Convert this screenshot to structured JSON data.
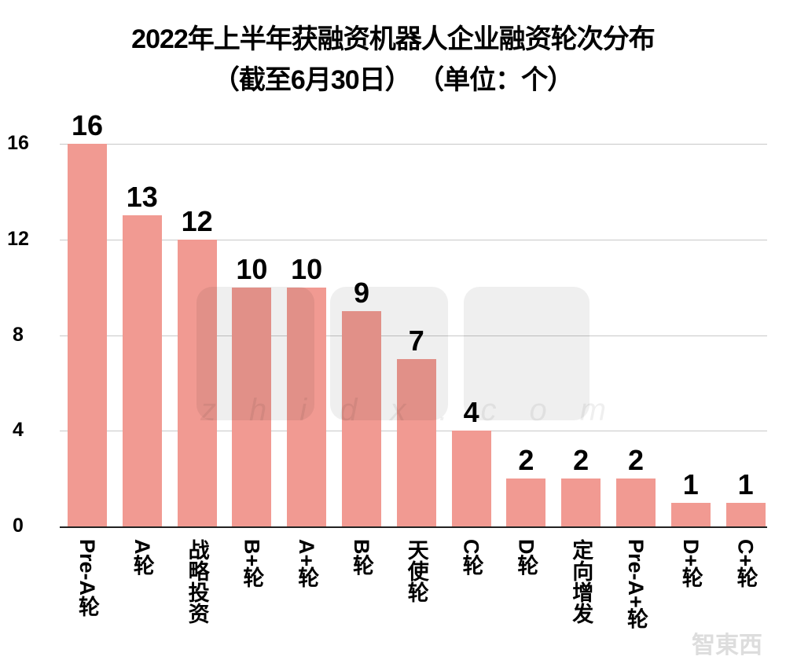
{
  "chart_data": {
    "type": "bar",
    "title": "2022年上半年获融资机器人企业融资轮次分布",
    "subtitle": "（截至6月30日）（单位：个）",
    "categories": [
      "Pre-A轮",
      "A轮",
      "战略投资",
      "B+轮",
      "A+轮",
      "B轮",
      "天使轮",
      "C轮",
      "D轮",
      "定向增发",
      "Pre-A+轮",
      "D+轮",
      "C+轮"
    ],
    "values": [
      16,
      13,
      12,
      10,
      10,
      9,
      7,
      4,
      2,
      2,
      2,
      1,
      1
    ],
    "xlabel": "",
    "ylabel": "",
    "ylim": [
      0,
      16
    ],
    "yticks": [
      "0",
      "4",
      "8",
      "12",
      "16"
    ],
    "grid": true,
    "legend": null,
    "bar_color": "#f19a92",
    "data_labels": true
  },
  "title": {
    "line1": "2022年上半年获融资机器人企业融资轮次分布",
    "line2": "（截至6月30日） （单位：个）"
  },
  "watermark": {
    "text": "智東西",
    "url_text": "zhidx.com"
  }
}
